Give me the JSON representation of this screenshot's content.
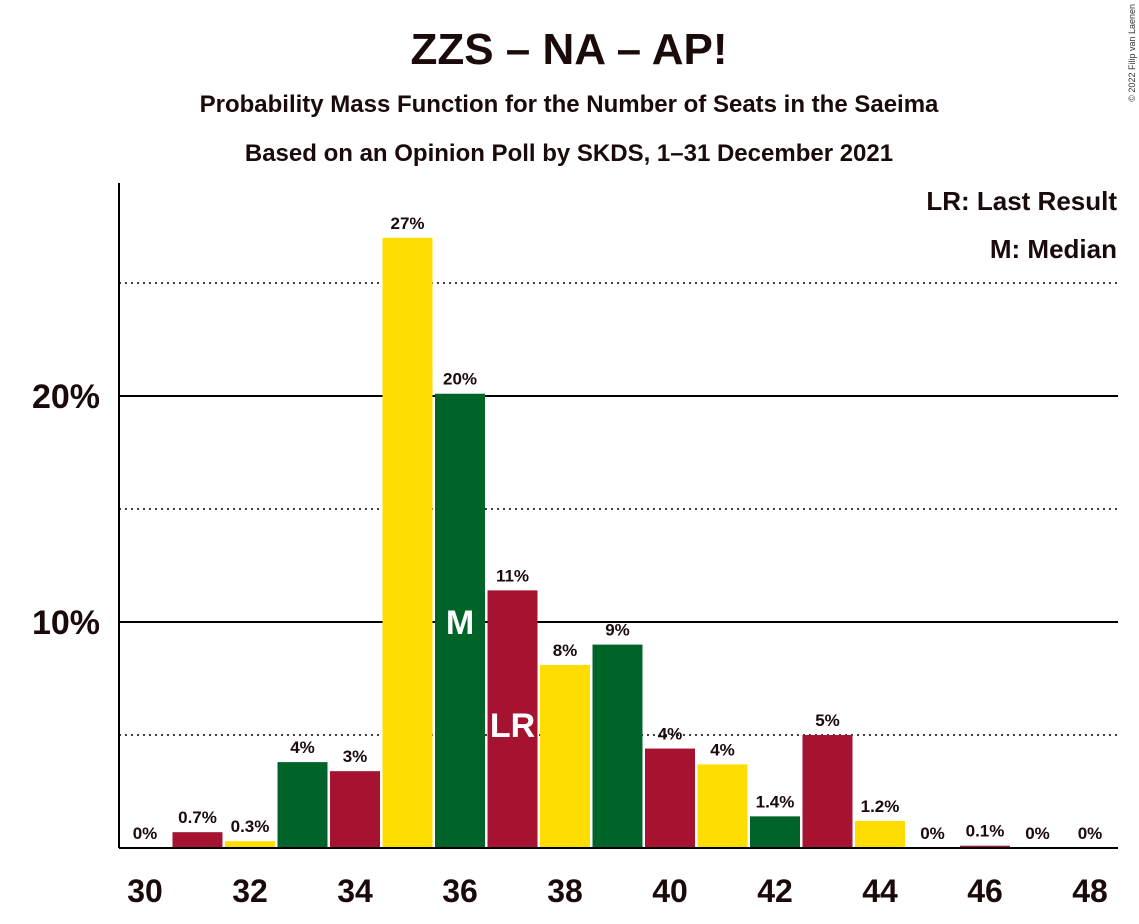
{
  "title": "ZZS – NA – AP!",
  "subtitle1": "Probability Mass Function for the Number of Seats in the Saeima",
  "subtitle2": "Based on an Opinion Poll by SKDS, 1–31 December 2021",
  "copyright": "© 2022 Filip van Laenen",
  "legend": {
    "last_result": "LR: Last Result",
    "median": "M: Median"
  },
  "chart_data": {
    "type": "bar",
    "x": [
      30,
      31,
      32,
      33,
      34,
      35,
      36,
      37,
      38,
      39,
      40,
      41,
      42,
      43,
      44,
      45,
      46,
      47,
      48
    ],
    "values": [
      0,
      0.7,
      0.3,
      3.8,
      3.4,
      27,
      20.1,
      11.4,
      8.1,
      9.0,
      4.4,
      3.7,
      1.4,
      5.0,
      1.2,
      0,
      0.1,
      0,
      0
    ],
    "labels": [
      "0%",
      "0.7%",
      "0.3%",
      "4%",
      "3%",
      "27%",
      "20%",
      "11%",
      "8%",
      "9%",
      "4%",
      "4%",
      "1.4%",
      "5%",
      "1.2%",
      "0%",
      "0.1%",
      "0%",
      "0%"
    ],
    "colors": [
      "#FFDD00",
      "#A51331",
      "#FFDD00",
      "#006428",
      "#A51331",
      "#FFDD00",
      "#006428",
      "#A51331",
      "#FFDD00",
      "#006428",
      "#A51331",
      "#FFDD00",
      "#006428",
      "#A51331",
      "#FFDD00",
      "#006428",
      "#A51331",
      "#FFDD00",
      "#006428"
    ],
    "x_tick_labels": [
      "30",
      "32",
      "34",
      "36",
      "38",
      "40",
      "42",
      "44",
      "46",
      "48"
    ],
    "x_ticks": [
      30,
      32,
      34,
      36,
      38,
      40,
      42,
      44,
      46,
      48
    ],
    "y_tick_labels": [
      "10%",
      "20%"
    ],
    "y_ticks": [
      10,
      20
    ],
    "y_minor_gridlines": [
      5,
      15,
      25
    ],
    "ylim": [
      0,
      29.5
    ],
    "median": {
      "x": 36,
      "label": "M"
    },
    "last_result": {
      "x": 37,
      "label": "LR"
    },
    "legend_position": "top-right"
  }
}
